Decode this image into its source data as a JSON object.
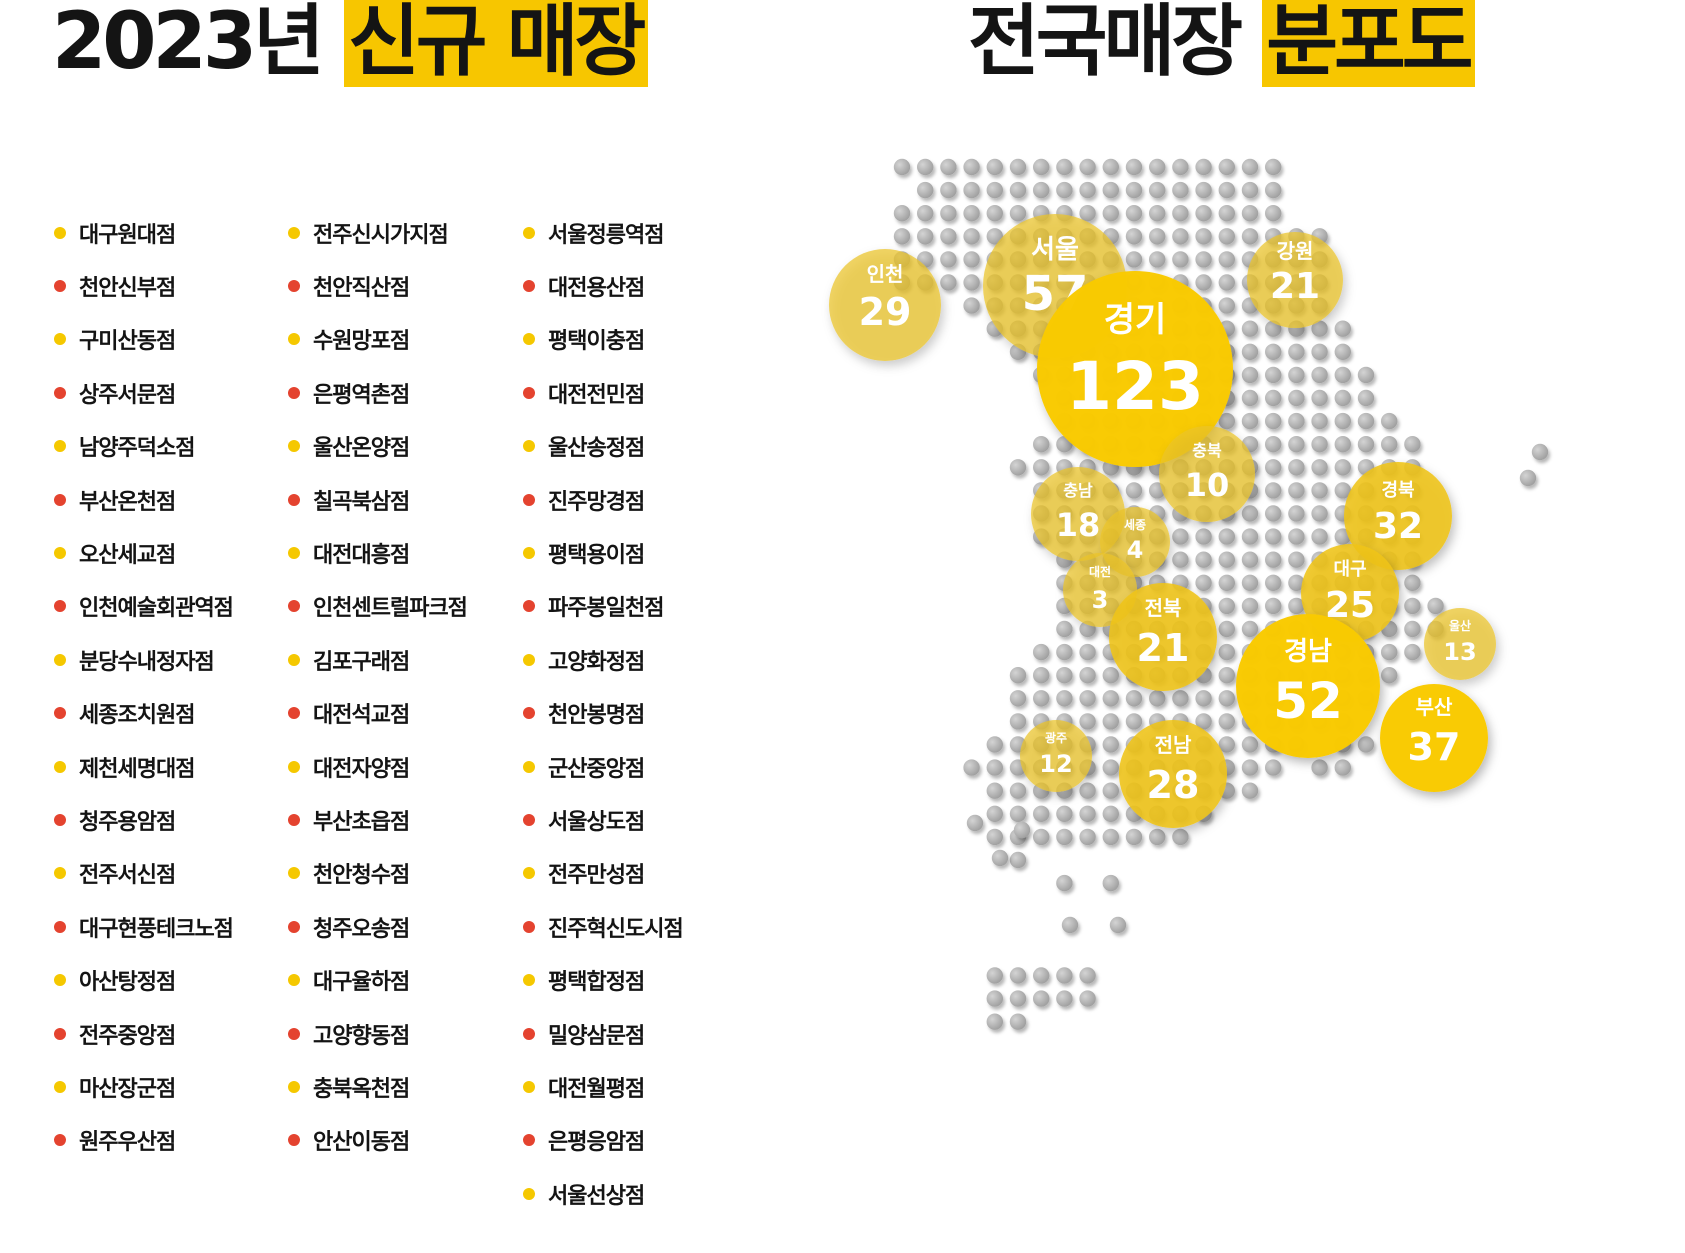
{
  "header_left": {
    "year_text": "2023년",
    "highlight": "신규 매장"
  },
  "header_right": {
    "text": "전국매장",
    "highlight": "분포도"
  },
  "colors": {
    "accent": "#f7c600",
    "dot_yellow": "#f5c800",
    "dot_red": "#e4432f",
    "map_dot": "#b9b9b9"
  },
  "store_columns": [
    [
      {
        "name": "대구원대점",
        "dot": "yellow"
      },
      {
        "name": "천안신부점",
        "dot": "red"
      },
      {
        "name": "구미산동점",
        "dot": "yellow"
      },
      {
        "name": "상주서문점",
        "dot": "red"
      },
      {
        "name": "남양주덕소점",
        "dot": "yellow"
      },
      {
        "name": "부산온천점",
        "dot": "red"
      },
      {
        "name": "오산세교점",
        "dot": "yellow"
      },
      {
        "name": "인천예술회관역점",
        "dot": "red"
      },
      {
        "name": "분당수내정자점",
        "dot": "yellow"
      },
      {
        "name": "세종조치원점",
        "dot": "red"
      },
      {
        "name": "제천세명대점",
        "dot": "yellow"
      },
      {
        "name": "청주용암점",
        "dot": "red"
      },
      {
        "name": "전주서신점",
        "dot": "yellow"
      },
      {
        "name": "대구현풍테크노점",
        "dot": "red"
      },
      {
        "name": "아산탕정점",
        "dot": "yellow"
      },
      {
        "name": "전주중앙점",
        "dot": "red"
      },
      {
        "name": "마산장군점",
        "dot": "yellow"
      },
      {
        "name": "원주우산점",
        "dot": "red"
      }
    ],
    [
      {
        "name": "전주신시가지점",
        "dot": "yellow"
      },
      {
        "name": "천안직산점",
        "dot": "red"
      },
      {
        "name": "수원망포점",
        "dot": "yellow"
      },
      {
        "name": "은평역촌점",
        "dot": "red"
      },
      {
        "name": "울산온양점",
        "dot": "yellow"
      },
      {
        "name": "칠곡북삼점",
        "dot": "red"
      },
      {
        "name": "대전대흥점",
        "dot": "yellow"
      },
      {
        "name": "인천센트럴파크점",
        "dot": "red"
      },
      {
        "name": "김포구래점",
        "dot": "yellow"
      },
      {
        "name": "대전석교점",
        "dot": "red"
      },
      {
        "name": "대전자양점",
        "dot": "yellow"
      },
      {
        "name": "부산초읍점",
        "dot": "red"
      },
      {
        "name": "천안청수점",
        "dot": "yellow"
      },
      {
        "name": "청주오송점",
        "dot": "red"
      },
      {
        "name": "대구율하점",
        "dot": "yellow"
      },
      {
        "name": "고양향동점",
        "dot": "red"
      },
      {
        "name": "충북옥천점",
        "dot": "yellow"
      },
      {
        "name": "안산이동점",
        "dot": "red"
      }
    ],
    [
      {
        "name": "서울정릉역점",
        "dot": "yellow"
      },
      {
        "name": "대전용산점",
        "dot": "red"
      },
      {
        "name": "평택이충점",
        "dot": "yellow"
      },
      {
        "name": "대전전민점",
        "dot": "red"
      },
      {
        "name": "울산송정점",
        "dot": "yellow"
      },
      {
        "name": "진주망경점",
        "dot": "red"
      },
      {
        "name": "평택용이점",
        "dot": "yellow"
      },
      {
        "name": "파주봉일천점",
        "dot": "red"
      },
      {
        "name": "고양화정점",
        "dot": "yellow"
      },
      {
        "name": "천안봉명점",
        "dot": "red"
      },
      {
        "name": "군산중앙점",
        "dot": "yellow"
      },
      {
        "name": "서울상도점",
        "dot": "red"
      },
      {
        "name": "전주만성점",
        "dot": "yellow"
      },
      {
        "name": "진주혁신도시점",
        "dot": "red"
      },
      {
        "name": "평택합정점",
        "dot": "yellow"
      },
      {
        "name": "밀양삼문점",
        "dot": "red"
      },
      {
        "name": "대전월평점",
        "dot": "yellow"
      },
      {
        "name": "은평응암점",
        "dot": "red"
      },
      {
        "name": "서울선상점",
        "dot": "yellow"
      }
    ]
  ],
  "regions": [
    {
      "name": "인천",
      "count": "29",
      "tone": "light"
    },
    {
      "name": "서울",
      "count": "57",
      "tone": "light"
    },
    {
      "name": "경기",
      "count": "123",
      "tone": "strong"
    },
    {
      "name": "강원",
      "count": "21",
      "tone": "light"
    },
    {
      "name": "충북",
      "count": "10",
      "tone": "light"
    },
    {
      "name": "충남",
      "count": "18",
      "tone": "light"
    },
    {
      "name": "세종",
      "count": "4",
      "tone": "light"
    },
    {
      "name": "경북",
      "count": "32",
      "tone": "mid"
    },
    {
      "name": "대전",
      "count": "3",
      "tone": "light"
    },
    {
      "name": "대구",
      "count": "25",
      "tone": "mid"
    },
    {
      "name": "전북",
      "count": "21",
      "tone": "mid"
    },
    {
      "name": "울산",
      "count": "13",
      "tone": "light"
    },
    {
      "name": "경남",
      "count": "52",
      "tone": "strong"
    },
    {
      "name": "부산",
      "count": "37",
      "tone": "strong"
    },
    {
      "name": "광주",
      "count": "12",
      "tone": "light"
    },
    {
      "name": "전남",
      "count": "28",
      "tone": "mid"
    }
  ]
}
